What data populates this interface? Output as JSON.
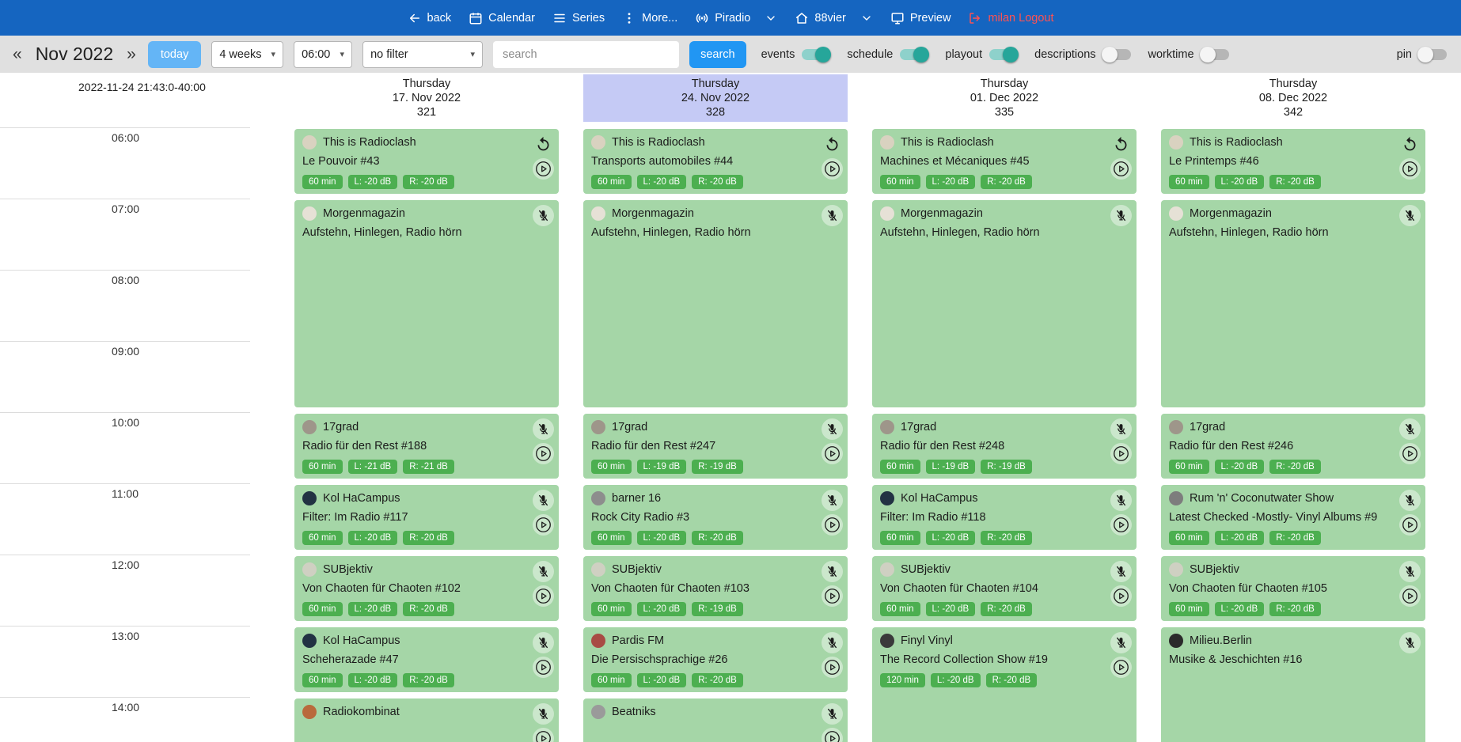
{
  "colors": {
    "topnav_bg": "#1565c0",
    "toolbar_bg": "#e0e0e0",
    "accent_blue": "#2196f3",
    "today_blue": "#64b5f6",
    "toggle_on": "#26a69a",
    "event_bg": "#a5d6a7",
    "badge_bg": "#4caf50",
    "highlight_day_bg": "#c5caf5",
    "logout_red": "#ff5252"
  },
  "topnav": {
    "items": [
      {
        "icon": "arrow-left-icon",
        "label": "back"
      },
      {
        "icon": "calendar-icon",
        "label": "Calendar"
      },
      {
        "icon": "list-icon",
        "label": "Series"
      },
      {
        "icon": "kebab-icon",
        "label": "More..."
      },
      {
        "icon": "broadcast-icon",
        "label": "Piradio",
        "chevron": true
      },
      {
        "icon": "home-icon",
        "label": "88vier",
        "chevron": true
      },
      {
        "icon": "monitor-icon",
        "label": "Preview"
      },
      {
        "icon": "logout-icon",
        "label": "milan Logout",
        "danger": true
      }
    ]
  },
  "toolbar": {
    "prev": "«",
    "next": "»",
    "month": "Nov 2022",
    "today": "today",
    "selects": [
      {
        "value": "4 weeks"
      },
      {
        "value": "06:00"
      },
      {
        "value": "no filter"
      }
    ],
    "search_placeholder": "search",
    "search_button": "search",
    "toggles": [
      {
        "label": "events",
        "on": true
      },
      {
        "label": "schedule",
        "on": true
      },
      {
        "label": "playout",
        "on": true
      },
      {
        "label": "descriptions",
        "on": false
      },
      {
        "label": "worktime",
        "on": false
      }
    ],
    "pin": {
      "label": "pin",
      "on": false
    }
  },
  "grid": {
    "timestamp": "2022-11-24 21:43:0-40:00",
    "hours": [
      "06:00",
      "07:00",
      "08:00",
      "09:00",
      "10:00",
      "11:00",
      "12:00",
      "13:00",
      "14:00"
    ],
    "days": [
      {
        "weekday": "Thursday",
        "date": "17. Nov 2022",
        "daynum": "321",
        "highlight": false,
        "events": [
          {
            "title": "This is Radioclash",
            "subtitle": "Le Pouvoir #43",
            "badges": [
              "60 min",
              "L: -20 dB",
              "R: -20 dB"
            ],
            "start": 0,
            "span": 1,
            "corner": "replay",
            "play": true,
            "avatar": "#d9d2c0"
          },
          {
            "title": "Morgenmagazin",
            "subtitle": "Aufstehn, Hinlegen, Radio hörn",
            "badges": [],
            "start": 1,
            "span": 3,
            "corner": "mic-off",
            "play": false,
            "avatar": "#e6e1d6"
          },
          {
            "title": "17grad",
            "subtitle": "Radio für den Rest #188",
            "badges": [
              "60 min",
              "L: -21 dB",
              "R: -21 dB"
            ],
            "start": 4,
            "span": 1,
            "corner": "mic-off",
            "play": true,
            "avatar": "#9e968a"
          },
          {
            "title": "Kol HaCampus",
            "subtitle": "Filter: Im Radio #117",
            "badges": [
              "60 min",
              "L: -20 dB",
              "R: -20 dB"
            ],
            "start": 5,
            "span": 1,
            "corner": "mic-off",
            "play": true,
            "avatar": "#223243"
          },
          {
            "title": "SUBjektiv",
            "subtitle": "Von Chaoten für Chaoten #102",
            "badges": [
              "60 min",
              "L: -20 dB",
              "R: -20 dB"
            ],
            "start": 6,
            "span": 1,
            "corner": "mic-off",
            "play": true,
            "avatar": "#cfd0c2"
          },
          {
            "title": "Kol HaCampus",
            "subtitle": "Scheherazade #47",
            "badges": [
              "60 min",
              "L: -20 dB",
              "R: -20 dB"
            ],
            "start": 7,
            "span": 1,
            "corner": "mic-off",
            "play": true,
            "avatar": "#223243"
          },
          {
            "title": "Radiokombinat",
            "badges": [],
            "start": 8,
            "span": 1,
            "corner": "mic-off",
            "play": true,
            "avatar": "#b96a3c"
          }
        ]
      },
      {
        "weekday": "Thursday",
        "date": "24. Nov 2022",
        "daynum": "328",
        "highlight": true,
        "events": [
          {
            "title": "This is Radioclash",
            "subtitle": "Transports automobiles #44",
            "badges": [
              "60 min",
              "L: -20 dB",
              "R: -20 dB"
            ],
            "start": 0,
            "span": 1,
            "corner": "replay",
            "play": true,
            "avatar": "#d9d2c0"
          },
          {
            "title": "Morgenmagazin",
            "subtitle": "Aufstehn, Hinlegen, Radio hörn",
            "badges": [],
            "start": 1,
            "span": 3,
            "corner": "mic-off",
            "play": false,
            "avatar": "#e6e1d6"
          },
          {
            "title": "17grad",
            "subtitle": "Radio für den Rest #247",
            "badges": [
              "60 min",
              "L: -19 dB",
              "R: -19 dB"
            ],
            "start": 4,
            "span": 1,
            "corner": "mic-off",
            "play": true,
            "avatar": "#9e968a"
          },
          {
            "title": "barner 16",
            "subtitle": "Rock City Radio #3",
            "badges": [
              "60 min",
              "L: -20 dB",
              "R: -20 dB"
            ],
            "start": 5,
            "span": 1,
            "corner": "mic-off",
            "play": true,
            "avatar": "#8d8d8d"
          },
          {
            "title": "SUBjektiv",
            "subtitle": "Von Chaoten für Chaoten #103",
            "badges": [
              "60 min",
              "L: -20 dB",
              "R: -19 dB"
            ],
            "start": 6,
            "span": 1,
            "corner": "mic-off",
            "play": true,
            "avatar": "#cfd0c2"
          },
          {
            "title": "Pardis FM",
            "subtitle": "Die Persischsprachige #26",
            "badges": [
              "60 min",
              "L: -20 dB",
              "R: -20 dB"
            ],
            "start": 7,
            "span": 1,
            "corner": "mic-off",
            "play": true,
            "avatar": "#a84b44"
          },
          {
            "title": "Beatniks",
            "badges": [],
            "start": 8,
            "span": 1,
            "corner": "mic-off",
            "play": true,
            "avatar": "#9a9a9a"
          }
        ]
      },
      {
        "weekday": "Thursday",
        "date": "01. Dec 2022",
        "daynum": "335",
        "highlight": false,
        "events": [
          {
            "title": "This is Radioclash",
            "subtitle": "Machines et Mécaniques #45",
            "badges": [
              "60 min",
              "L: -20 dB",
              "R: -20 dB"
            ],
            "start": 0,
            "span": 1,
            "corner": "replay",
            "play": true,
            "avatar": "#d9d2c0"
          },
          {
            "title": "Morgenmagazin",
            "subtitle": "Aufstehn, Hinlegen, Radio hörn",
            "badges": [],
            "start": 1,
            "span": 3,
            "corner": "mic-off",
            "play": false,
            "avatar": "#e6e1d6"
          },
          {
            "title": "17grad",
            "subtitle": "Radio für den Rest #248",
            "badges": [
              "60 min",
              "L: -19 dB",
              "R: -19 dB"
            ],
            "start": 4,
            "span": 1,
            "corner": "mic-off",
            "play": true,
            "avatar": "#9e968a"
          },
          {
            "title": "Kol HaCampus",
            "subtitle": "Filter: Im Radio #118",
            "badges": [
              "60 min",
              "L: -20 dB",
              "R: -20 dB"
            ],
            "start": 5,
            "span": 1,
            "corner": "mic-off",
            "play": true,
            "avatar": "#223243"
          },
          {
            "title": "SUBjektiv",
            "subtitle": "Von Chaoten für Chaoten #104",
            "badges": [
              "60 min",
              "L: -20 dB",
              "R: -20 dB"
            ],
            "start": 6,
            "span": 1,
            "corner": "mic-off",
            "play": true,
            "avatar": "#cfd0c2"
          },
          {
            "title": "Finyl Vinyl",
            "subtitle": "The Record Collection Show #19",
            "badges": [
              "120 min",
              "L: -20 dB",
              "R: -20 dB"
            ],
            "start": 7,
            "span": 2,
            "corner": "mic-off",
            "play": true,
            "avatar": "#3a3a3a"
          }
        ]
      },
      {
        "weekday": "Thursday",
        "date": "08. Dec 2022",
        "daynum": "342",
        "highlight": false,
        "events": [
          {
            "title": "This is Radioclash",
            "subtitle": "Le Printemps #46",
            "badges": [
              "60 min",
              "L: -20 dB",
              "R: -20 dB"
            ],
            "start": 0,
            "span": 1,
            "corner": "replay",
            "play": true,
            "avatar": "#d9d2c0"
          },
          {
            "title": "Morgenmagazin",
            "subtitle": "Aufstehn, Hinlegen, Radio hörn",
            "badges": [],
            "start": 1,
            "span": 3,
            "corner": "mic-off",
            "play": false,
            "avatar": "#e6e1d6"
          },
          {
            "title": "17grad",
            "subtitle": "Radio für den Rest #246",
            "badges": [
              "60 min",
              "L: -20 dB",
              "R: -20 dB"
            ],
            "start": 4,
            "span": 1,
            "corner": "mic-off",
            "play": true,
            "avatar": "#9e968a"
          },
          {
            "title": "Rum 'n' Coconutwater Show",
            "subtitle": "Latest Checked -Mostly- Vinyl Albums #9",
            "badges": [
              "60 min",
              "L: -20 dB",
              "R: -20 dB"
            ],
            "start": 5,
            "span": 1,
            "corner": "mic-off",
            "play": true,
            "avatar": "#7d7d7d"
          },
          {
            "title": "SUBjektiv",
            "subtitle": "Von Chaoten für Chaoten #105",
            "badges": [
              "60 min",
              "L: -20 dB",
              "R: -20 dB"
            ],
            "start": 6,
            "span": 1,
            "corner": "mic-off",
            "play": true,
            "avatar": "#cfd0c2"
          },
          {
            "title": "Milieu.Berlin",
            "subtitle": "Musike & Jeschichten #16",
            "badges": [],
            "start": 7,
            "span": 2,
            "corner": "mic-off",
            "play": false,
            "avatar": "#2b2b2b"
          }
        ]
      }
    ]
  }
}
